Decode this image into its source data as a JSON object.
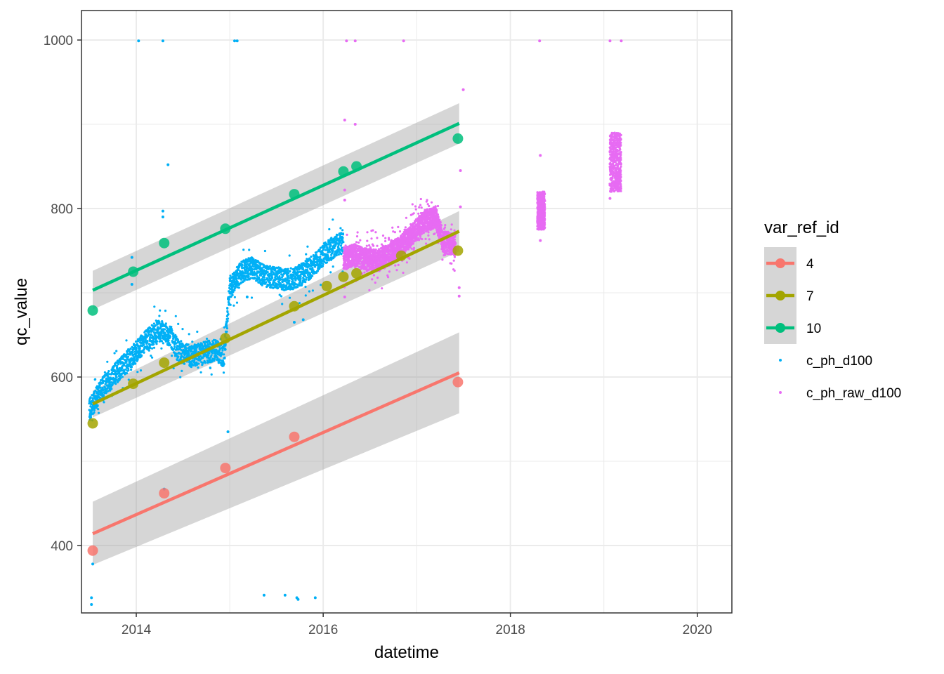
{
  "colors": {
    "series_4": "#F8766D",
    "series_7": "#A3A500",
    "series_10": "#00BF7D",
    "c_ph_d100": "#00B0F6",
    "c_ph_raw_d100": "#E76BF3",
    "ribbon": "#999999",
    "grid": "#ebebeb",
    "border": "#333333"
  },
  "chart_data": {
    "type": "scatter",
    "xlabel": "datetime",
    "ylabel": "qc_value",
    "xlim": [
      "2013-06-01",
      "2020-05-15"
    ],
    "ylim": [
      320,
      1035
    ],
    "x_ticks": [
      "2014",
      "2016",
      "2018",
      "2020"
    ],
    "x_tick_dates": [
      "2014-01-01",
      "2016-01-01",
      "2018-01-01",
      "2020-01-01"
    ],
    "y_ticks": [
      "400",
      "600",
      "800",
      "1000"
    ],
    "y_tick_values": [
      400,
      600,
      800,
      1000
    ],
    "grid": true,
    "legend": {
      "title": "var_ref_id",
      "placement": "right",
      "items": [
        {
          "label": "4",
          "kind": "line-point",
          "series": "4"
        },
        {
          "label": "7",
          "kind": "line-point",
          "series": "7"
        },
        {
          "label": "10",
          "kind": "line-point",
          "series": "10"
        },
        {
          "label": "c_ph_d100",
          "kind": "point",
          "series": "c_ph_d100"
        },
        {
          "label": "c_ph_raw_d100",
          "kind": "point",
          "series": "c_ph_raw_d100"
        }
      ]
    },
    "reference_series": [
      {
        "name": "4",
        "points": [
          [
            "2013-07-15",
            394
          ],
          [
            "2014-04-20",
            462
          ],
          [
            "2014-12-15",
            492
          ],
          [
            "2015-09-10",
            529
          ],
          [
            "2017-06-10",
            594
          ]
        ],
        "fit": {
          "x": [
            "2013-07-15",
            "2017-06-15"
          ],
          "y": [
            414,
            605
          ],
          "se_lower": [
            377,
            557
          ],
          "se_upper": [
            452,
            653
          ]
        }
      },
      {
        "name": "7",
        "points": [
          [
            "2013-07-15",
            545
          ],
          [
            "2013-12-20",
            592
          ],
          [
            "2014-04-20",
            617
          ],
          [
            "2014-12-15",
            646
          ],
          [
            "2015-09-10",
            684
          ],
          [
            "2016-01-15",
            708
          ],
          [
            "2016-03-20",
            719
          ],
          [
            "2016-05-10",
            723
          ],
          [
            "2016-11-01",
            744
          ],
          [
            "2017-06-10",
            750
          ]
        ],
        "fit": {
          "x": [
            "2013-07-15",
            "2017-06-15"
          ],
          "y": [
            568,
            773
          ],
          "se_lower": [
            552,
            749
          ],
          "se_upper": [
            584,
            797
          ]
        }
      },
      {
        "name": "10",
        "points": [
          [
            "2013-07-15",
            679
          ],
          [
            "2013-12-20",
            725
          ],
          [
            "2014-04-20",
            759
          ],
          [
            "2014-12-15",
            776
          ],
          [
            "2015-09-10",
            817
          ],
          [
            "2016-03-20",
            844
          ],
          [
            "2016-05-10",
            850
          ],
          [
            "2017-06-10",
            883
          ]
        ],
        "fit": {
          "x": [
            "2013-07-15",
            "2017-06-15"
          ],
          "y": [
            703,
            901
          ],
          "se_lower": [
            680,
            877
          ],
          "se_upper": [
            726,
            925
          ]
        }
      }
    ],
    "scatter_series": [
      {
        "name": "c_ph_d100",
        "trend": [
          [
            "2013-07-01",
            560
          ],
          [
            "2013-08-15",
            585
          ],
          [
            "2013-10-01",
            600
          ],
          [
            "2013-11-15",
            615
          ],
          [
            "2014-01-01",
            630
          ],
          [
            "2014-02-15",
            645
          ],
          [
            "2014-04-01",
            655
          ],
          [
            "2014-05-15",
            648
          ],
          [
            "2014-06-15",
            630
          ],
          [
            "2014-08-01",
            625
          ],
          [
            "2014-09-15",
            628
          ],
          [
            "2014-11-01",
            632
          ],
          [
            "2014-12-10",
            625
          ],
          [
            "2015-01-01",
            705
          ],
          [
            "2015-02-15",
            725
          ],
          [
            "2015-04-01",
            730
          ],
          [
            "2015-05-15",
            720
          ],
          [
            "2015-07-01",
            718
          ],
          [
            "2015-08-15",
            715
          ],
          [
            "2015-10-01",
            720
          ],
          [
            "2015-11-15",
            730
          ],
          [
            "2016-01-01",
            745
          ],
          [
            "2016-02-15",
            755
          ],
          [
            "2016-03-20",
            760
          ]
        ],
        "outliers": [
          [
            "2014-01-10",
            999
          ],
          [
            "2014-04-15",
            999
          ],
          [
            "2015-01-20",
            999
          ],
          [
            "2015-01-30",
            999
          ],
          [
            "2014-05-05",
            852
          ],
          [
            "2014-04-15",
            797
          ],
          [
            "2014-04-15",
            790
          ],
          [
            "2013-12-15",
            742
          ],
          [
            "2013-12-15",
            710
          ],
          [
            "2014-04-20",
            467
          ],
          [
            "2013-07-15",
            378
          ],
          [
            "2013-07-10",
            338
          ],
          [
            "2013-07-10",
            330
          ],
          [
            "2015-05-15",
            341
          ],
          [
            "2015-08-05",
            341
          ],
          [
            "2015-09-20",
            338
          ],
          [
            "2015-09-25",
            336
          ],
          [
            "2015-12-01",
            338
          ],
          [
            "2014-12-25",
            535
          ],
          [
            "2015-09-10",
            665
          ],
          [
            "2015-10-15",
            668
          ],
          [
            "2015-03-10",
            695
          ]
        ]
      },
      {
        "name": "c_ph_raw_d100",
        "trend": [
          [
            "2016-03-20",
            740
          ],
          [
            "2016-05-01",
            745
          ],
          [
            "2016-06-15",
            740
          ],
          [
            "2016-08-01",
            738
          ],
          [
            "2016-09-15",
            745
          ],
          [
            "2016-11-01",
            755
          ],
          [
            "2016-12-15",
            770
          ],
          [
            "2017-02-01",
            785
          ],
          [
            "2017-03-15",
            790
          ],
          [
            "2017-04-15",
            760
          ],
          [
            "2017-06-01",
            757
          ]
        ],
        "clusters": [
          {
            "center": [
              "2018-05-01",
              795
            ],
            "x_span_days": 30,
            "y_span": [
              775,
              820
            ]
          },
          {
            "center": [
              "2019-02-15",
              860
            ],
            "x_span_days": 45,
            "y_span": [
              820,
              890
            ]
          }
        ],
        "outliers": [
          [
            "2016-04-01",
            999
          ],
          [
            "2016-05-05",
            999
          ],
          [
            "2016-11-10",
            999
          ],
          [
            "2018-04-25",
            999
          ],
          [
            "2019-01-25",
            999
          ],
          [
            "2019-03-10",
            999
          ],
          [
            "2016-03-25",
            905
          ],
          [
            "2016-05-05",
            900
          ],
          [
            "2017-07-01",
            941
          ],
          [
            "2018-04-28",
            863
          ],
          [
            "2019-01-25",
            812
          ],
          [
            "2018-04-28",
            762
          ],
          [
            "2016-03-25",
            822
          ],
          [
            "2016-03-25",
            810
          ],
          [
            "2016-03-25",
            695
          ],
          [
            "2017-06-20",
            845
          ],
          [
            "2017-06-20",
            802
          ],
          [
            "2017-06-15",
            706
          ],
          [
            "2017-06-15",
            696
          ]
        ]
      }
    ]
  }
}
